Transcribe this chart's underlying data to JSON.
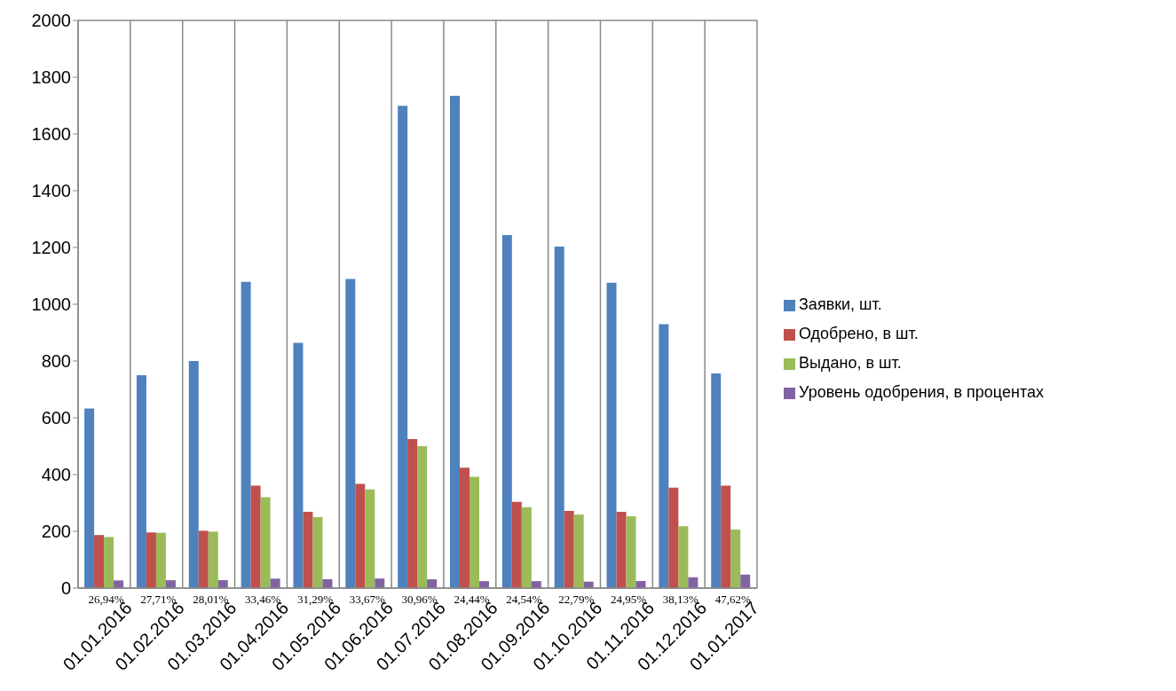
{
  "chart_data": {
    "type": "bar",
    "categories": [
      "01.01.2016",
      "01.02.2016",
      "01.03.2016",
      "01.04.2016",
      "01.05.2016",
      "01.06.2016",
      "01.07.2016",
      "01.08.2016",
      "01.09.2016",
      "01.10.2016",
      "01.11.2016",
      "01.12.2016",
      "01.01.2017"
    ],
    "series": [
      {
        "name": "Заявки, шт.",
        "color": "#4f81bd",
        "values": [
          633,
          750,
          800,
          1079,
          864,
          1089,
          1699,
          1734,
          1244,
          1203,
          1076,
          930,
          756
        ]
      },
      {
        "name": "Одобрено, в шт.",
        "color": "#c0504d",
        "values": [
          187,
          196,
          202,
          361,
          269,
          367,
          525,
          424,
          304,
          272,
          269,
          354,
          361
        ]
      },
      {
        "name": "Выдано, в шт.",
        "color": "#9bbb59",
        "values": [
          180,
          195,
          199,
          320,
          250,
          348,
          500,
          392,
          285,
          259,
          253,
          218,
          206
        ]
      },
      {
        "name": "Уровень одобрения, в процентах",
        "color": "#8064a2",
        "values": [
          26.94,
          27.71,
          28.01,
          33.46,
          31.29,
          33.67,
          30.96,
          24.44,
          24.54,
          22.79,
          24.95,
          38.13,
          47.62
        ],
        "value_labels": [
          "26,94%",
          "27,71%",
          "28,01%",
          "33,46%",
          "31,29%",
          "33,67%",
          "30,96%",
          "24,44%",
          "24,54%",
          "22,79%",
          "24,95%",
          "38,13%",
          "47,62%"
        ]
      }
    ],
    "ylim": [
      0,
      2000
    ],
    "yticks": [
      0,
      200,
      400,
      600,
      800,
      1000,
      1200,
      1400,
      1600,
      1800,
      2000
    ],
    "grid": true,
    "legend": "right"
  }
}
